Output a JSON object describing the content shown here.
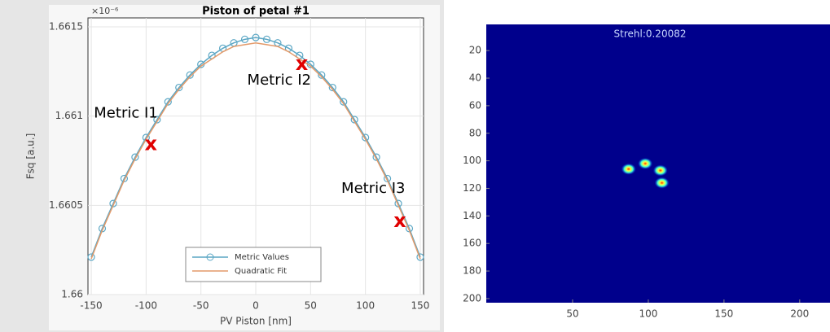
{
  "chart_data": [
    {
      "type": "line",
      "title": "Piston of petal #1",
      "multiplier": "×10⁻⁶",
      "xlabel": "PV Piston [nm]",
      "ylabel": "Fsq [a.u.]",
      "x": [
        -150,
        -140,
        -130,
        -120,
        -110,
        -100,
        -90,
        -80,
        -70,
        -60,
        -50,
        -40,
        -30,
        -20,
        -10,
        0,
        10,
        20,
        30,
        40,
        50,
        60,
        70,
        80,
        90,
        100,
        110,
        120,
        130,
        140,
        150
      ],
      "series": [
        {
          "name": "Metric Values",
          "color": "#5aa6c4",
          "marker": "circle",
          "values": [
            1.66021,
            1.66037,
            1.66051,
            1.66065,
            1.66077,
            1.66088,
            1.66098,
            1.66108,
            1.66116,
            1.66123,
            1.66129,
            1.66134,
            1.66138,
            1.66141,
            1.66143,
            1.66144,
            1.66143,
            1.66141,
            1.66138,
            1.66134,
            1.66129,
            1.66123,
            1.66116,
            1.66108,
            1.66098,
            1.66088,
            1.66077,
            1.66065,
            1.66051,
            1.66037,
            1.66021
          ]
        },
        {
          "name": "Quadratic Fit",
          "color": "#e39a6a",
          "marker": "none",
          "values": [
            1.6602,
            1.66036,
            1.6605,
            1.66064,
            1.66076,
            1.66087,
            1.66097,
            1.66107,
            1.66115,
            1.66122,
            1.66128,
            1.66132,
            1.66136,
            1.66139,
            1.6614,
            1.66141,
            1.6614,
            1.66139,
            1.66136,
            1.66132,
            1.66128,
            1.66122,
            1.66115,
            1.66107,
            1.66097,
            1.66087,
            1.66076,
            1.66064,
            1.6605,
            1.66036,
            1.6602
          ]
        }
      ],
      "xlim": [
        -153,
        153
      ],
      "xticks": [
        -150,
        -100,
        -50,
        0,
        50,
        100,
        150
      ],
      "ylim": [
        1.66,
        1.66155
      ],
      "yticks": [
        1.66,
        1.6605,
        1.661,
        1.6615
      ],
      "grid": true,
      "legend": "lower center",
      "annotations": [
        {
          "text": "Metric I1",
          "marker": "x",
          "color": "#e00000",
          "x": -95.6,
          "y": 1.66084
        },
        {
          "text": "Metric I2",
          "marker": "x",
          "color": "#e00000",
          "x": 42,
          "y": 1.66129
        },
        {
          "text": "Metric I3",
          "marker": "x",
          "color": "#e00000",
          "x": 131.5,
          "y": 1.66041
        }
      ]
    },
    {
      "type": "image",
      "title": "Strehl:0.20082",
      "background": "#00008c",
      "xlim": [
        -7,
        220
      ],
      "xticks": [
        50,
        100,
        150,
        200
      ],
      "ylim": [
        203,
        1
      ],
      "yticks": [
        20,
        40,
        60,
        80,
        100,
        120,
        140,
        160,
        180,
        200
      ],
      "spots": [
        {
          "x": 87,
          "y": 106
        },
        {
          "x": 98,
          "y": 102
        },
        {
          "x": 108,
          "y": 107
        },
        {
          "x": 109,
          "y": 116
        }
      ]
    }
  ]
}
